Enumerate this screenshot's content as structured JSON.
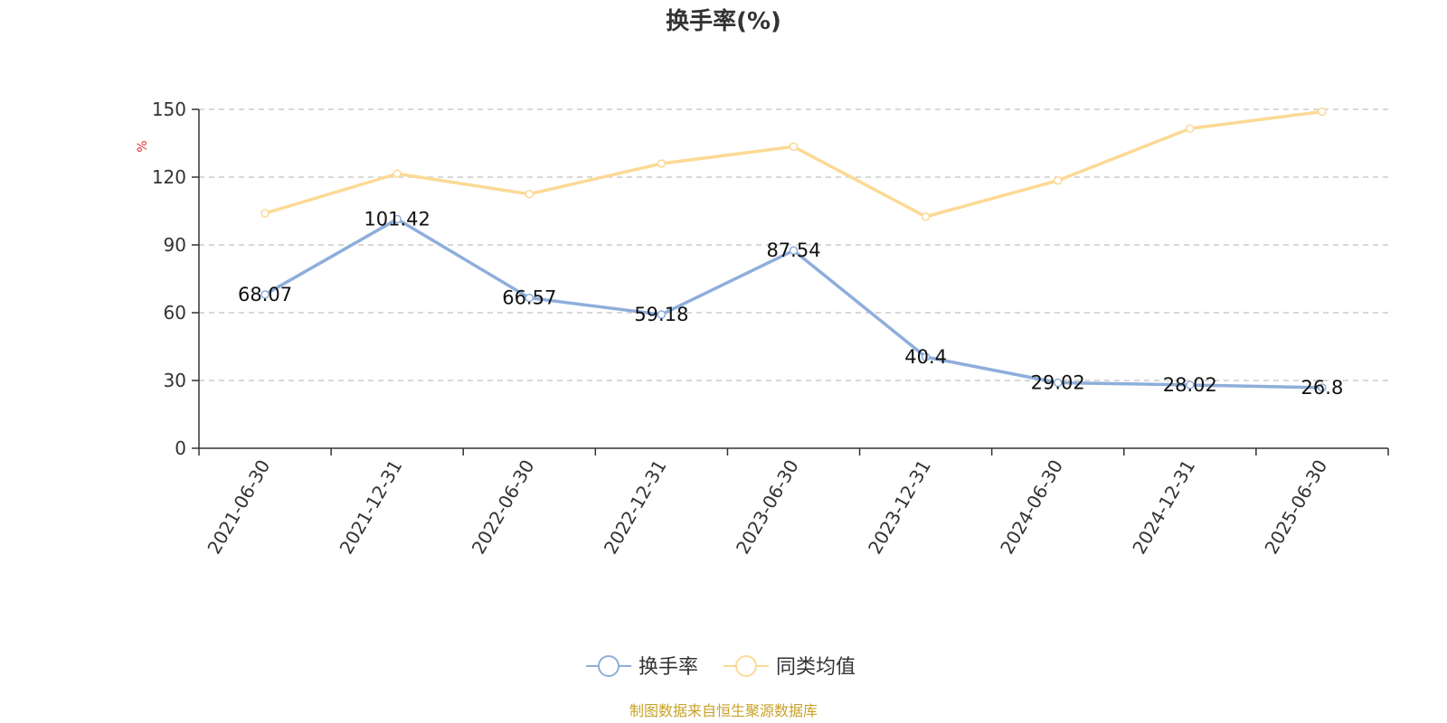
{
  "chart_data": {
    "type": "line",
    "title": "换手率(%)",
    "ylabel": "%",
    "xlabel": "",
    "categories": [
      "2021-06-30",
      "2021-12-31",
      "2022-06-30",
      "2022-12-31",
      "2023-06-30",
      "2023-12-31",
      "2024-06-30",
      "2024-12-31",
      "2025-06-30"
    ],
    "yticks": [
      0,
      30,
      60,
      90,
      120,
      150
    ],
    "ylim": [
      0,
      150
    ],
    "grid": true,
    "legend_position": "bottom-center",
    "series": [
      {
        "name": "换手率",
        "color": "#8eaedb",
        "values": [
          68.07,
          101.42,
          66.57,
          59.18,
          87.54,
          40.4,
          29.02,
          28.02,
          26.8
        ],
        "labels": [
          "68.07",
          "101.42",
          "66.57",
          "59.18",
          "87.54",
          "40.4",
          "29.02",
          "28.02",
          "26.8"
        ]
      },
      {
        "name": "同类均值",
        "color": "#fcd995",
        "values": [
          104,
          121.5,
          112.5,
          126,
          133.5,
          102.5,
          118.5,
          141.5,
          149
        ]
      }
    ],
    "colors": {
      "unit_label": "#e03030",
      "source": "#c9a227",
      "grid": "#cccccc",
      "axis": "#333333"
    },
    "source_text": "制图数据来自恒生聚源数据库"
  }
}
